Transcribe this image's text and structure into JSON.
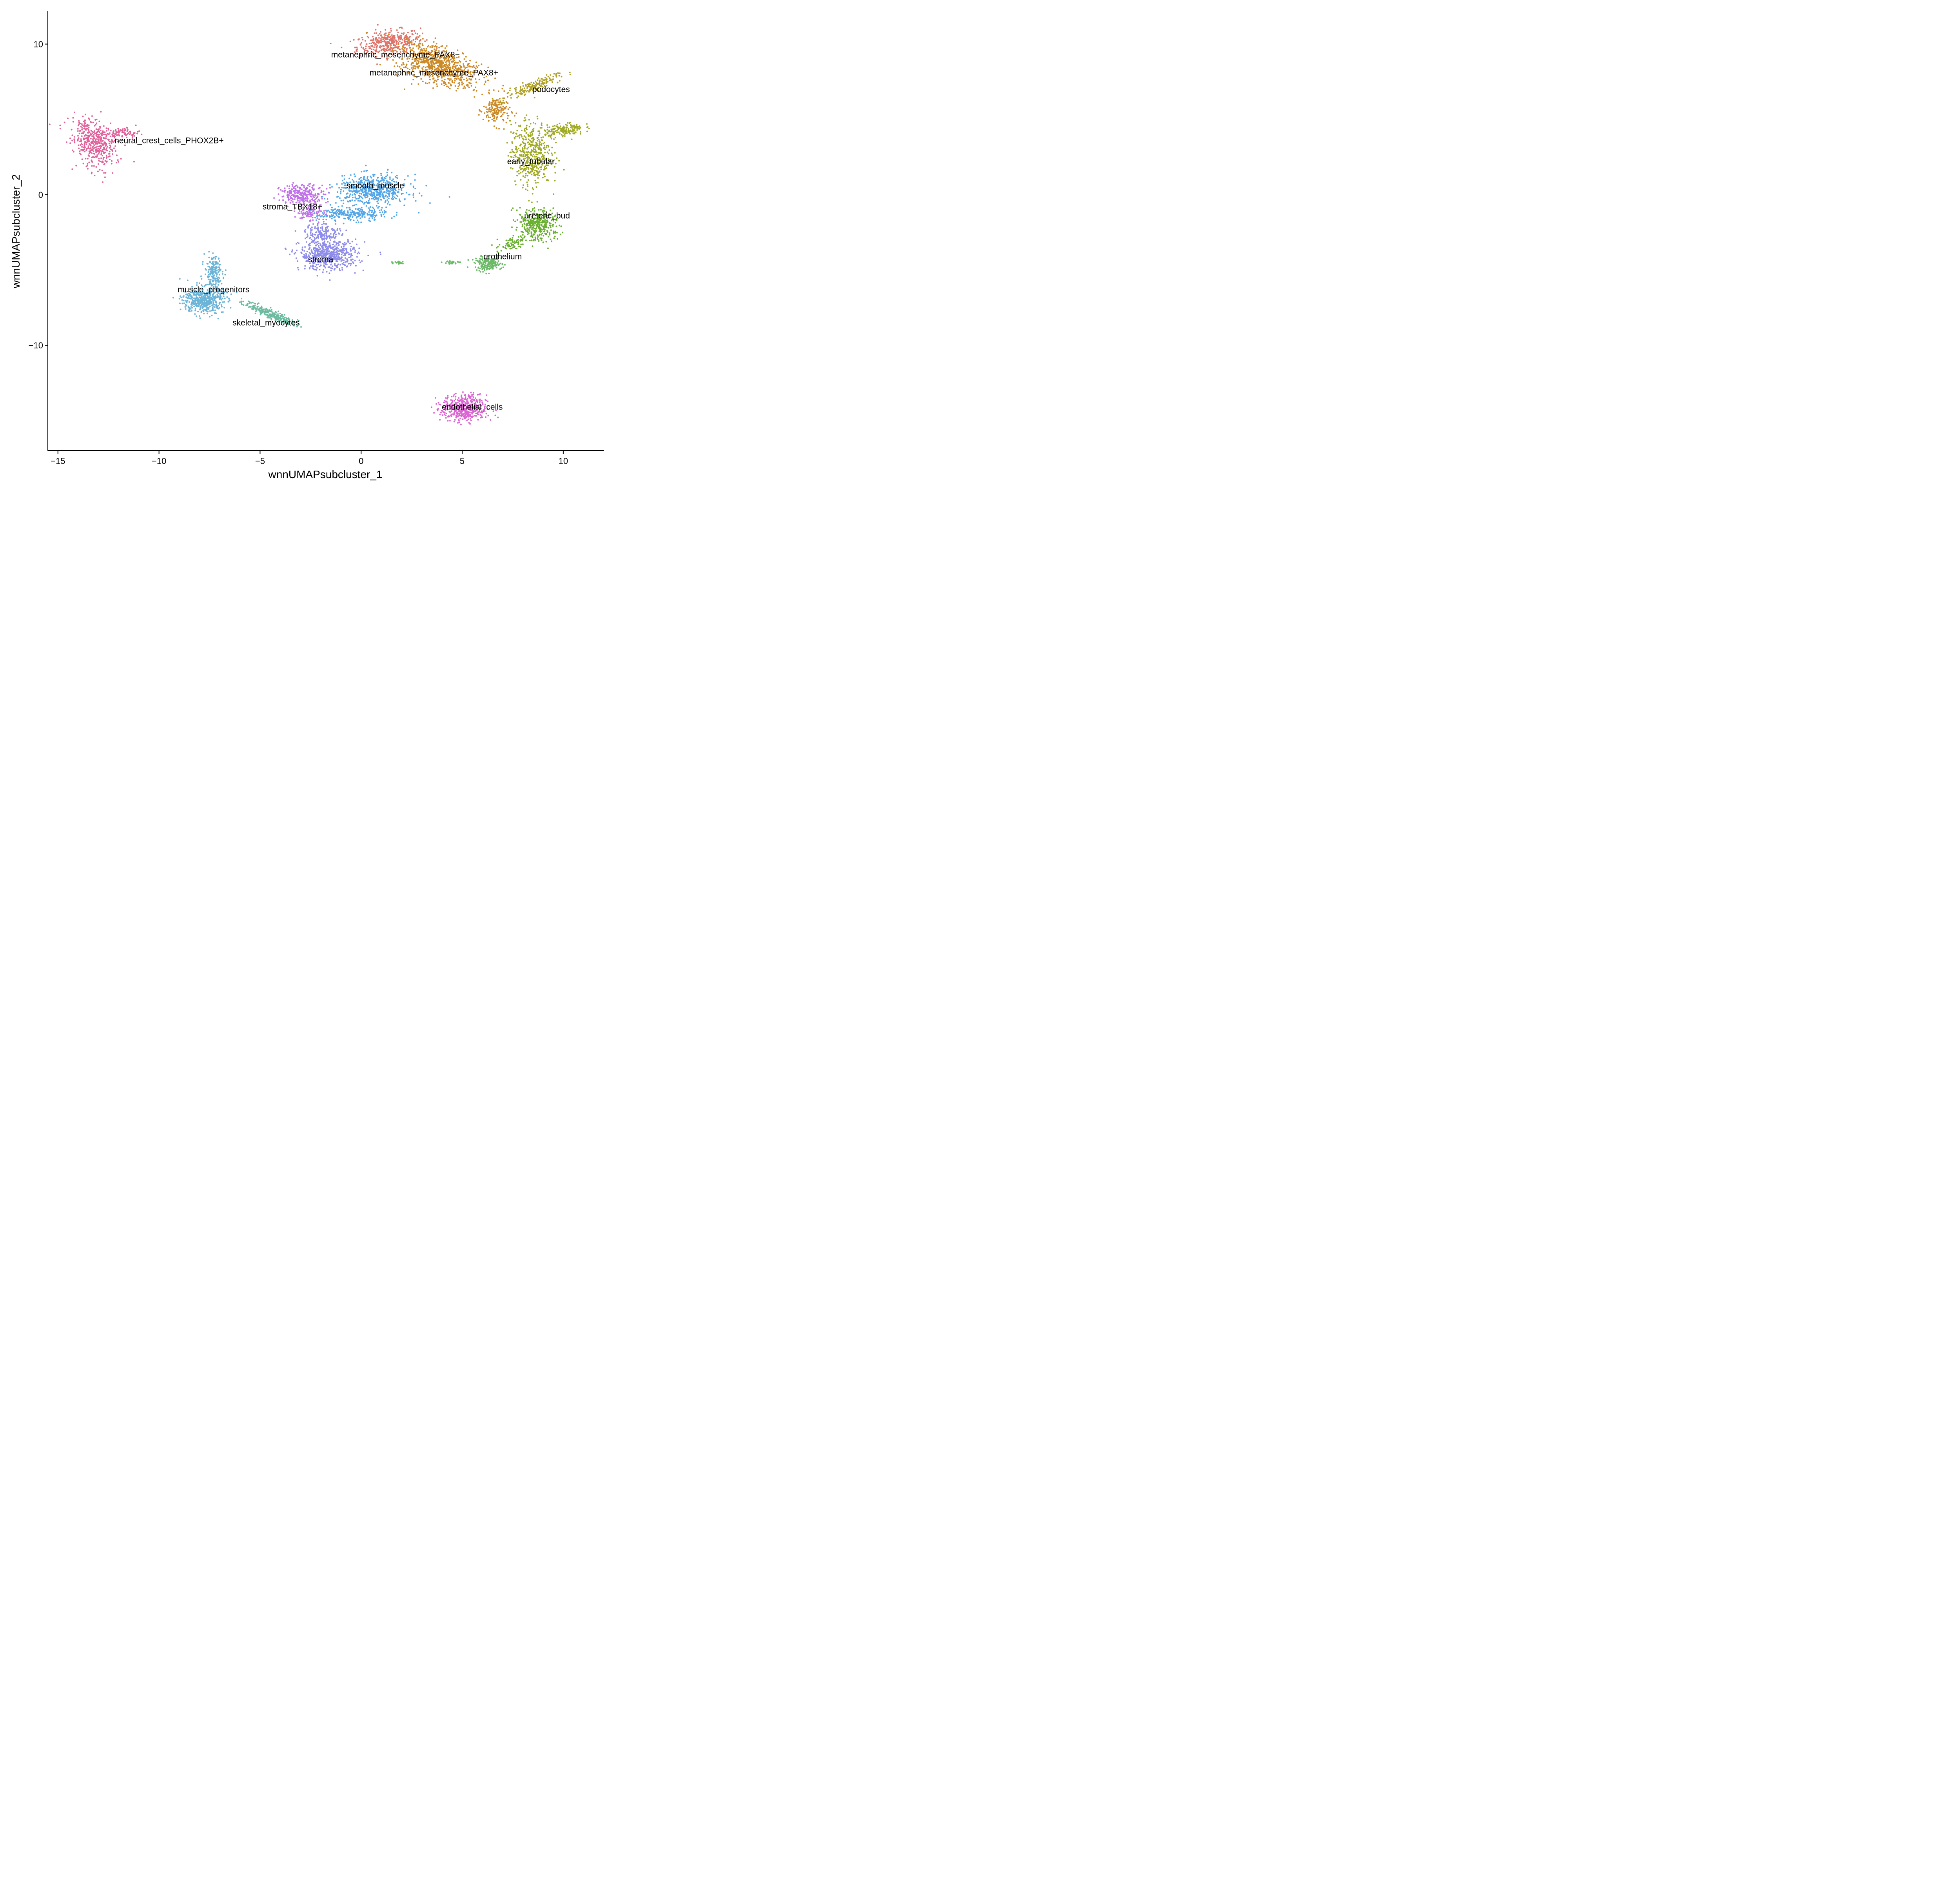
{
  "chart_data": {
    "type": "scatter",
    "title": "",
    "xlabel": "wnnUMAPsubcluster_1",
    "ylabel": "wnnUMAPsubcluster_2",
    "xlim": [
      -15.5,
      12
    ],
    "ylim": [
      -17.0,
      12.2
    ],
    "x_ticks": [
      -15,
      -10,
      -5,
      0,
      5,
      10
    ],
    "y_ticks": [
      -10,
      0,
      10
    ],
    "x_tick_labels": [
      "−15",
      "−10",
      "−5",
      "0",
      "5",
      "10"
    ],
    "y_tick_labels": [
      "−10",
      "0",
      "10"
    ],
    "grid": false,
    "legend": "none",
    "clusters": [
      {
        "name": "metanephric_mesenchyme_PAX8−",
        "color": "#E0736B",
        "label_pos": [
          1.7,
          9.3
        ],
        "shape": [
          [
            1.4,
            10.1,
            1.5,
            0.7,
            10,
            380
          ]
        ]
      },
      {
        "name": "metanephric_mesenchyme_PAX8+",
        "color": "#CC8A27",
        "label_pos": [
          3.6,
          8.1
        ],
        "shape": [
          [
            3.8,
            8.6,
            2.0,
            1.0,
            -30,
            800
          ],
          [
            6.7,
            5.6,
            0.6,
            0.9,
            0,
            180
          ]
        ]
      },
      {
        "name": "podocytes",
        "color": "#B0A025",
        "label_pos": [
          9.4,
          7.0
        ],
        "shape": [
          [
            8.5,
            7.2,
            1.3,
            0.3,
            28,
            170
          ]
        ]
      },
      {
        "name": "neural_crest_cells_PHOX2B+",
        "color": "#E0619A",
        "label_pos": [
          -9.5,
          3.6
        ],
        "shape": [
          [
            -13.2,
            3.5,
            0.9,
            1.6,
            20,
            450
          ],
          [
            -11.8,
            4.1,
            0.8,
            0.3,
            5,
            80
          ]
        ]
      },
      {
        "name": "early_tubular",
        "color": "#A0AA22",
        "label_pos": [
          8.4,
          2.2
        ],
        "shape": [
          [
            8.4,
            2.7,
            0.9,
            1.9,
            0,
            500
          ],
          [
            10.0,
            4.3,
            0.9,
            0.4,
            10,
            160
          ]
        ]
      },
      {
        "name": "smooth_muscle",
        "color": "#53A6E8",
        "label_pos": [
          0.7,
          0.6
        ],
        "shape": [
          [
            0.6,
            0.3,
            1.6,
            0.9,
            0,
            600
          ],
          [
            -0.5,
            -1.3,
            1.6,
            0.4,
            0,
            250
          ]
        ]
      },
      {
        "name": "stroma_TBX18+",
        "color": "#C070E8",
        "label_pos": [
          -3.4,
          -0.8
        ],
        "shape": [
          [
            -2.9,
            0.0,
            1.0,
            0.6,
            0,
            280
          ],
          [
            -2.5,
            -1.2,
            0.6,
            0.6,
            0,
            100
          ]
        ]
      },
      {
        "name": "ureteric_bud",
        "color": "#6AB030",
        "label_pos": [
          9.2,
          -1.4
        ],
        "shape": [
          [
            8.7,
            -2.0,
            0.9,
            0.9,
            25,
            380
          ],
          [
            7.5,
            -3.2,
            0.8,
            0.4,
            35,
            80
          ]
        ]
      },
      {
        "name": "stroma",
        "color": "#8E8CEB",
        "label_pos": [
          -2.0,
          -4.3
        ],
        "shape": [
          [
            -1.6,
            -4.0,
            1.3,
            0.9,
            0,
            600
          ],
          [
            -1.9,
            -2.5,
            0.8,
            0.6,
            0,
            150
          ]
        ]
      },
      {
        "name": "urothelium",
        "color": "#6BBA67",
        "label_pos": [
          7.0,
          -4.1
        ],
        "shape": [
          [
            6.3,
            -4.6,
            0.6,
            0.4,
            0,
            200
          ],
          [
            4.5,
            -4.5,
            0.4,
            0.1,
            0,
            30
          ],
          [
            1.9,
            -4.5,
            0.25,
            0.1,
            0,
            20
          ]
        ]
      },
      {
        "name": "muscle_progenitors",
        "color": "#6BB4D8",
        "label_pos": [
          -7.3,
          -6.3
        ],
        "shape": [
          [
            -7.8,
            -7.0,
            0.9,
            0.8,
            0,
            500
          ],
          [
            -7.3,
            -5.2,
            0.4,
            1.0,
            0,
            200
          ]
        ]
      },
      {
        "name": "skeletal_myocytes",
        "color": "#6CBBA0",
        "label_pos": [
          -4.7,
          -8.5
        ],
        "shape": [
          [
            -4.5,
            -7.9,
            1.3,
            0.25,
            -30,
            240
          ]
        ]
      },
      {
        "name": "endothelial_cells",
        "color": "#DB64D3",
        "label_pos": [
          5.5,
          -14.1
        ],
        "shape": [
          [
            5.1,
            -14.2,
            1.0,
            0.8,
            0,
            500
          ]
        ]
      }
    ]
  }
}
